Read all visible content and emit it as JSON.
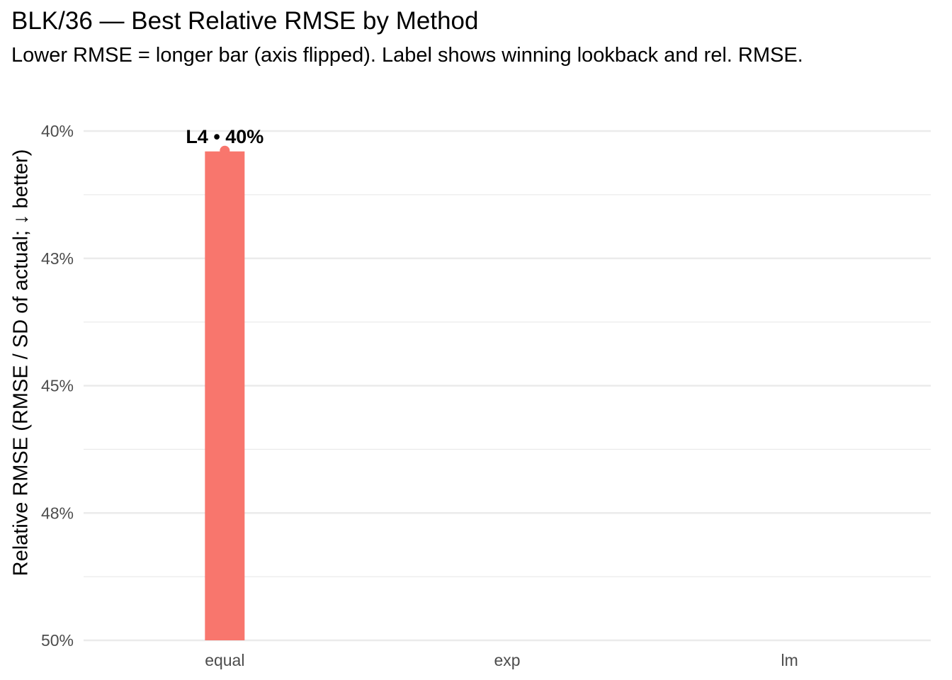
{
  "chart_data": {
    "type": "bar",
    "title": "BLK/36 — Best Relative RMSE by Method",
    "subtitle": "Lower RMSE = longer bar (axis flipped). Label shows winning lookback and rel. RMSE.",
    "xlabel": "",
    "ylabel": "Relative RMSE (RMSE / SD of actual; ↓ better)",
    "categories": [
      "equal",
      "exp",
      "lm"
    ],
    "values": [
      40.4,
      null,
      null
    ],
    "data_labels": [
      "L4 • 40%",
      "",
      ""
    ],
    "ylim": [
      50,
      40
    ],
    "y_reversed": true,
    "y_ticks": [
      40,
      42.5,
      45,
      47.5,
      50
    ],
    "y_tick_labels": [
      "40%",
      "43%",
      "45%",
      "48%",
      "50%"
    ],
    "grid": true,
    "colors": {
      "bar": "#F8766D",
      "grid": "#EBEBEB",
      "tick_text": "#4D4D4D"
    }
  }
}
